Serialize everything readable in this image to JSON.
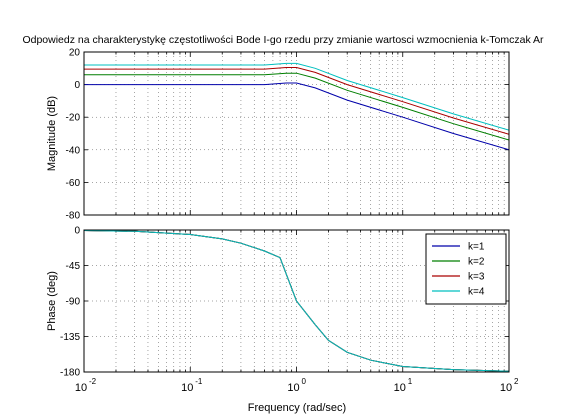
{
  "chart_data": {
    "type": "line",
    "title": "Odpowiedz na charakterystykę częstotliwości Bode I-go rzedu przy zmianie wartosci wzmocnienia k-Tomczak Ar",
    "xlabel": "Frequency  (rad/sec)",
    "xscale": "log",
    "xlim": [
      0.01,
      100
    ],
    "x_tick_labels": [
      {
        "base": "10",
        "exp": "-2"
      },
      {
        "base": "10",
        "exp": "-1"
      },
      {
        "base": "10",
        "exp": "0"
      },
      {
        "base": "10",
        "exp": "1"
      },
      {
        "base": "10",
        "exp": "2"
      }
    ],
    "x_ticks": [
      0.01,
      0.1,
      1,
      10,
      100
    ],
    "grid": true,
    "legend": {
      "placement": "top-right of phase panel",
      "entries": [
        "k=1",
        "k=2",
        "k=3",
        "k=4"
      ]
    },
    "panels": [
      {
        "name": "magnitude",
        "ylabel": "Magnitude (dB)",
        "ylim": [
          -80,
          20
        ],
        "yticks": [
          -80,
          -60,
          -40,
          -20,
          0,
          20
        ],
        "ytick_labels": [
          "-80",
          "-60",
          "-40",
          "-20",
          "0",
          "20"
        ],
        "series": [
          {
            "name": "k=1",
            "color": "#0000aa",
            "x": [
              0.01,
              0.1,
              0.5,
              0.8,
              1,
              1.5,
              3,
              10,
              30,
              100
            ],
            "y": [
              0,
              0,
              0,
              1,
              1,
              -2,
              -9.5,
              -20,
              -30,
              -40
            ]
          },
          {
            "name": "k=2",
            "color": "#007f00",
            "x": [
              0.01,
              0.1,
              0.5,
              0.8,
              1,
              1.5,
              3,
              10,
              30,
              100
            ],
            "y": [
              6,
              6,
              6,
              7,
              7,
              4,
              -3.5,
              -14,
              -24,
              -34
            ]
          },
          {
            "name": "k=3",
            "color": "#aa0000",
            "x": [
              0.01,
              0.1,
              0.5,
              0.8,
              1,
              1.5,
              3,
              10,
              30,
              100
            ],
            "y": [
              9.5,
              9.5,
              9.5,
              10.5,
              10.5,
              7.5,
              0,
              -10.5,
              -20.5,
              -30.5
            ]
          },
          {
            "name": "k=4",
            "color": "#00bfbf",
            "x": [
              0.01,
              0.1,
              0.5,
              0.8,
              1,
              1.5,
              3,
              10,
              30,
              100
            ],
            "y": [
              12,
              12,
              12,
              13,
              13,
              10,
              2.5,
              -8,
              -18,
              -28
            ]
          }
        ]
      },
      {
        "name": "phase",
        "ylabel": "Phase (deg)",
        "ylim": [
          -180,
          0
        ],
        "yticks": [
          -180,
          -135,
          -90,
          -45,
          0
        ],
        "ytick_labels": [
          "-180",
          "-135",
          "-90",
          "-45",
          "0"
        ],
        "series": [
          {
            "name": "k=1",
            "color": "#0000aa",
            "x": [
              0.01,
              0.03,
              0.1,
              0.2,
              0.3,
              0.5,
              0.7,
              1,
              1.5,
              2,
              3,
              5,
              10,
              30,
              100
            ],
            "y": [
              -0.6,
              -1.7,
              -5.7,
              -11.3,
              -16.7,
              -26.6,
              -35,
              -90,
              -120,
              -140,
              -155,
              -165,
              -173,
              -177,
              -179
            ]
          },
          {
            "name": "k=2",
            "color": "#007f00",
            "x": [
              0.01,
              0.03,
              0.1,
              0.2,
              0.3,
              0.5,
              0.7,
              1,
              1.5,
              2,
              3,
              5,
              10,
              30,
              100
            ],
            "y": [
              -0.6,
              -1.7,
              -5.7,
              -11.3,
              -16.7,
              -26.6,
              -35,
              -90,
              -120,
              -140,
              -155,
              -165,
              -173,
              -177,
              -179
            ]
          },
          {
            "name": "k=3",
            "color": "#aa0000",
            "x": [
              0.01,
              0.03,
              0.1,
              0.2,
              0.3,
              0.5,
              0.7,
              1,
              1.5,
              2,
              3,
              5,
              10,
              30,
              100
            ],
            "y": [
              -0.6,
              -1.7,
              -5.7,
              -11.3,
              -16.7,
              -26.6,
              -35,
              -90,
              -120,
              -140,
              -155,
              -165,
              -173,
              -177,
              -179
            ]
          },
          {
            "name": "k=4",
            "color": "#00bfbf",
            "x": [
              0.01,
              0.03,
              0.1,
              0.2,
              0.3,
              0.5,
              0.7,
              1,
              1.5,
              2,
              3,
              5,
              10,
              30,
              100
            ],
            "y": [
              -0.6,
              -1.7,
              -5.7,
              -11.3,
              -16.7,
              -26.6,
              -35,
              -90,
              -120,
              -140,
              -155,
              -165,
              -173,
              -177,
              -179
            ]
          }
        ]
      }
    ]
  }
}
